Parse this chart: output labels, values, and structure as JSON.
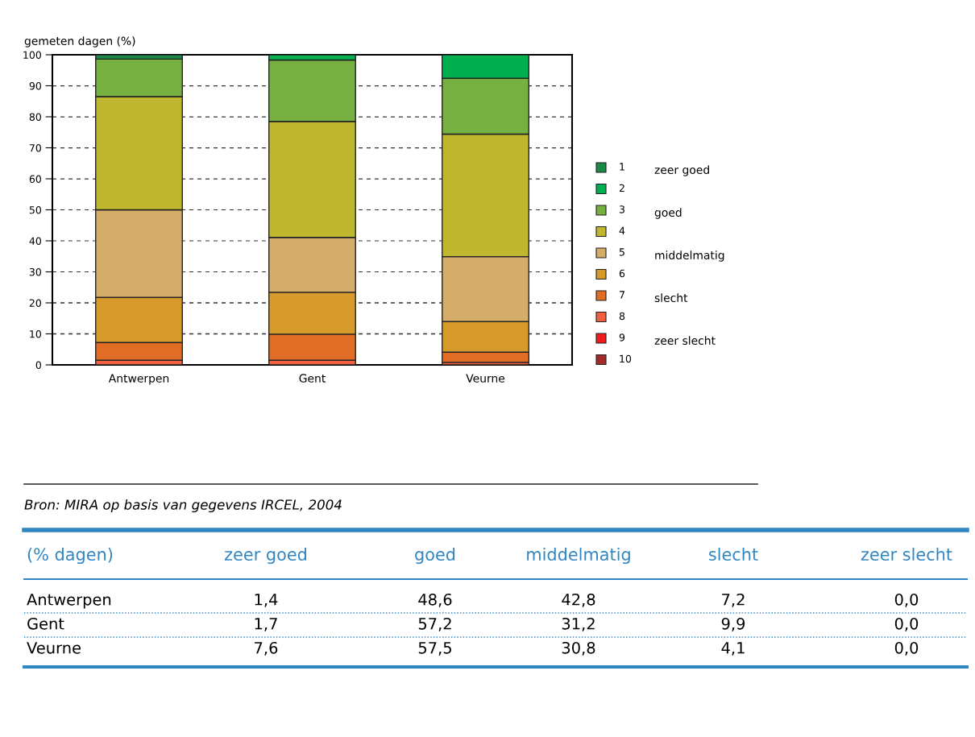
{
  "chart_data": [
    {
      "type": "bar",
      "stacked": true,
      "ylabel": "gemeten dagen (%)",
      "categories": [
        "Antwerpen",
        "Gent",
        "Veurne"
      ],
      "ylim": [
        0,
        100
      ],
      "yticks": [
        0,
        10,
        20,
        30,
        40,
        50,
        60,
        70,
        80,
        90,
        100
      ],
      "grid": "y",
      "line_style": "dashed",
      "legend": "right",
      "series": [
        {
          "name": "10",
          "color": "#a52a2a",
          "values": [
            0,
            0,
            0
          ]
        },
        {
          "name": "9",
          "color": "#ee1c1c",
          "values": [
            0,
            0,
            0
          ]
        },
        {
          "name": "8",
          "color": "#f06040",
          "values": [
            1.5,
            1.5,
            0.8
          ]
        },
        {
          "name": "7",
          "color": "#e06c25",
          "values": [
            5.7,
            8.4,
            3.3
          ]
        },
        {
          "name": "6",
          "color": "#d69a2a",
          "values": [
            14.6,
            13.5,
            9.9
          ]
        },
        {
          "name": "5",
          "color": "#d4ad6a",
          "values": [
            28.2,
            17.7,
            20.9
          ]
        },
        {
          "name": "4",
          "color": "#bfb72f",
          "values": [
            36.5,
            37.4,
            39.5
          ]
        },
        {
          "name": "3",
          "color": "#76b041",
          "values": [
            12.1,
            19.8,
            18.0
          ]
        },
        {
          "name": "2",
          "color": "#00b050",
          "values": [
            0,
            1.7,
            7.6
          ]
        },
        {
          "name": "1",
          "color": "#1a8a4a",
          "values": [
            1.4,
            0,
            0
          ]
        }
      ],
      "annotations": [
        "Bron: MIRA op basis van gegevens IRCEL, 2004",
        "zeer goed",
        "goed",
        "middelmatig",
        "slecht",
        "zeer slecht"
      ]
    },
    {
      "type": "other",
      "title": "(% dagen)",
      "categories": [
        "zeer goed",
        "goed",
        "middelmatig",
        "slecht",
        "zeer slecht"
      ],
      "y_categories": [
        "Antwerpen",
        "Gent",
        "Veurne"
      ],
      "cell_labels": [
        [
          "1,4",
          "48,6",
          "42,8",
          "7,2",
          "0,0"
        ],
        [
          "1,7",
          "57,2",
          "31,2",
          "9,9",
          "0,0"
        ],
        [
          "7,6",
          "57,5",
          "30,8",
          "4,1",
          "0,0"
        ]
      ]
    }
  ]
}
